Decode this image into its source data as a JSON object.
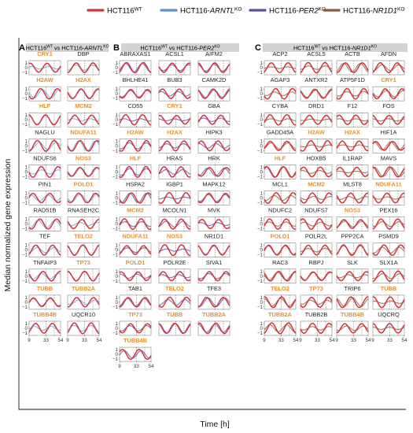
{
  "legend": [
    {
      "base": "HCT116",
      "sup": "WT",
      "italic": "",
      "color": "#d5333c"
    },
    {
      "base": "HCT116-",
      "italic": "ARNTL",
      "sup": "KO",
      "color": "#5b8fc8"
    },
    {
      "base": "HCT116-",
      "italic": "PER2",
      "sup": "KO",
      "color": "#5a4f9c"
    },
    {
      "base": "HCT116-",
      "italic": "NR1D1",
      "sup": "KO",
      "color": "#8a5a3c"
    }
  ],
  "axes": {
    "ylabel": "Median normalized gene expression",
    "xlabel": "Time [h]",
    "x_ticks": [
      9,
      33,
      54
    ],
    "y_ticks": [
      1,
      0,
      -1
    ]
  },
  "chart_data": [
    {
      "type": "line",
      "panel": "A",
      "header": {
        "base": "HCT116",
        "sup1": "WT",
        "mid": " vs HCT116-",
        "italic": "ARNTL",
        "sup2": "KO"
      },
      "xlabel": "Time [h]",
      "ylabel": "Median normalized gene expression",
      "x_range": [
        9,
        54
      ],
      "y_range": [
        -1.5,
        1.5
      ],
      "x_ticks": [
        9,
        33,
        54
      ],
      "y_ticks": [
        -1,
        0,
        1
      ],
      "series": [
        "HCT116WT",
        "HCT116-ARNTLKO"
      ],
      "genes": [
        {
          "name": "CRY1",
          "highlight": true
        },
        {
          "name": "DBP",
          "highlight": false
        },
        {
          "name": "H2AW",
          "highlight": true
        },
        {
          "name": "H2AX",
          "highlight": true
        },
        {
          "name": "HLF",
          "highlight": true
        },
        {
          "name": "MCM2",
          "highlight": true
        },
        {
          "name": "NAGLU",
          "highlight": false
        },
        {
          "name": "NDUFA11",
          "highlight": true
        },
        {
          "name": "NDUFS6",
          "highlight": false
        },
        {
          "name": "NOS3",
          "highlight": true
        },
        {
          "name": "PIN1",
          "highlight": false
        },
        {
          "name": "POLD1",
          "highlight": true
        },
        {
          "name": "RAD51B",
          "highlight": false
        },
        {
          "name": "RNASEH2C",
          "highlight": false
        },
        {
          "name": "TEF",
          "highlight": false
        },
        {
          "name": "TELO2",
          "highlight": true
        },
        {
          "name": "TNFAIP3",
          "highlight": false
        },
        {
          "name": "TP73",
          "highlight": true
        },
        {
          "name": "TUBB",
          "highlight": true
        },
        {
          "name": "TUBB2A",
          "highlight": true
        },
        {
          "name": "TUBB4B",
          "highlight": true
        },
        {
          "name": "UQCR10",
          "highlight": false
        }
      ]
    },
    {
      "type": "line",
      "panel": "B",
      "header": {
        "base": "HCT116",
        "sup1": "WT",
        "mid": " vs HCT116-",
        "italic": "PER2",
        "sup2": "KO"
      },
      "xlabel": "Time [h]",
      "ylabel": "Median normalized gene expression",
      "x_range": [
        9,
        54
      ],
      "y_range": [
        -1.5,
        1.5
      ],
      "x_ticks": [
        9,
        33,
        54
      ],
      "y_ticks": [
        -1,
        0,
        1
      ],
      "series": [
        "HCT116WT",
        "HCT116-PER2KO"
      ],
      "genes": [
        {
          "name": "ABRAXAS1",
          "highlight": false
        },
        {
          "name": "ACSL1",
          "highlight": false
        },
        {
          "name": "AIFM2",
          "highlight": false
        },
        {
          "name": "BHLHE41",
          "highlight": false
        },
        {
          "name": "BUB3",
          "highlight": false
        },
        {
          "name": "CAMK2D",
          "highlight": false
        },
        {
          "name": "CD55",
          "highlight": false
        },
        {
          "name": "CRY1",
          "highlight": true
        },
        {
          "name": "GBA",
          "highlight": false
        },
        {
          "name": "H2AW",
          "highlight": true
        },
        {
          "name": "H2AX",
          "highlight": true
        },
        {
          "name": "HIPK3",
          "highlight": false
        },
        {
          "name": "HLF",
          "highlight": true
        },
        {
          "name": "HRAS",
          "highlight": false
        },
        {
          "name": "HRK",
          "highlight": false
        },
        {
          "name": "HSPA2",
          "highlight": false
        },
        {
          "name": "IGBP1",
          "highlight": false
        },
        {
          "name": "MAPK12",
          "highlight": false
        },
        {
          "name": "MCM2",
          "highlight": true
        },
        {
          "name": "MCOLN1",
          "highlight": false
        },
        {
          "name": "MVK",
          "highlight": false
        },
        {
          "name": "NDUFA11",
          "highlight": true
        },
        {
          "name": "NOS3",
          "highlight": true
        },
        {
          "name": "NR1D1",
          "highlight": false
        },
        {
          "name": "POLD1",
          "highlight": true
        },
        {
          "name": "POLR2E",
          "highlight": false
        },
        {
          "name": "SIVA1",
          "highlight": false
        },
        {
          "name": "TAB1",
          "highlight": false
        },
        {
          "name": "TELO2",
          "highlight": true
        },
        {
          "name": "TFE3",
          "highlight": false
        },
        {
          "name": "TP73",
          "highlight": true
        },
        {
          "name": "TUBB",
          "highlight": true
        },
        {
          "name": "TUBB2A",
          "highlight": true
        },
        {
          "name": "TUBB4B",
          "highlight": true
        }
      ]
    },
    {
      "type": "line",
      "panel": "C",
      "header": {
        "base": "HCT116",
        "sup1": "WT",
        "mid": " vs HCT116-",
        "italic": "NR1D1",
        "sup2": "KO"
      },
      "xlabel": "Time [h]",
      "ylabel": "Median normalized gene expression",
      "x_range": [
        9,
        54
      ],
      "y_range": [
        -1.5,
        1.5
      ],
      "x_ticks": [
        9,
        33,
        54
      ],
      "y_ticks": [
        -1,
        0,
        1
      ],
      "series": [
        "HCT116WT",
        "HCT116-NR1D1KO"
      ],
      "genes": [
        {
          "name": "ACP2",
          "highlight": false
        },
        {
          "name": "ACSL5",
          "highlight": false
        },
        {
          "name": "ACTB",
          "highlight": false
        },
        {
          "name": "AFDN",
          "highlight": false
        },
        {
          "name": "AGAP3",
          "highlight": false
        },
        {
          "name": "ANTXR2",
          "highlight": false
        },
        {
          "name": "ATP5F1D",
          "highlight": false
        },
        {
          "name": "CRY1",
          "highlight": true
        },
        {
          "name": "CYBA",
          "highlight": false
        },
        {
          "name": "DRD1",
          "highlight": false
        },
        {
          "name": "F12",
          "highlight": false
        },
        {
          "name": "FOS",
          "highlight": false
        },
        {
          "name": "GADD45A",
          "highlight": false
        },
        {
          "name": "H2AW",
          "highlight": true
        },
        {
          "name": "H2AX",
          "highlight": true
        },
        {
          "name": "HIF1A",
          "highlight": false
        },
        {
          "name": "HLF",
          "highlight": true
        },
        {
          "name": "HOXB5",
          "highlight": false
        },
        {
          "name": "IL1RAP",
          "highlight": false
        },
        {
          "name": "MAVS",
          "highlight": false
        },
        {
          "name": "MCL1",
          "highlight": false
        },
        {
          "name": "MCM2",
          "highlight": true
        },
        {
          "name": "MLST8",
          "highlight": false
        },
        {
          "name": "NDUFA11",
          "highlight": true
        },
        {
          "name": "NDUFC2",
          "highlight": false
        },
        {
          "name": "NDUFS7",
          "highlight": false
        },
        {
          "name": "NOS3",
          "highlight": true
        },
        {
          "name": "PEX16",
          "highlight": false
        },
        {
          "name": "POLD1",
          "highlight": true
        },
        {
          "name": "POLR2L",
          "highlight": false
        },
        {
          "name": "PPP2CA",
          "highlight": false
        },
        {
          "name": "PSMD9",
          "highlight": false
        },
        {
          "name": "RAC3",
          "highlight": false
        },
        {
          "name": "RBPJ",
          "highlight": false
        },
        {
          "name": "SLK",
          "highlight": false
        },
        {
          "name": "SLX1A",
          "highlight": false
        },
        {
          "name": "TELO2",
          "highlight": true
        },
        {
          "name": "TP73",
          "highlight": true
        },
        {
          "name": "TRIP6",
          "highlight": false
        },
        {
          "name": "TUBB",
          "highlight": true
        },
        {
          "name": "TUBB2A",
          "highlight": true
        },
        {
          "name": "TUBB2B",
          "highlight": false
        },
        {
          "name": "TUBB4B",
          "highlight": true
        },
        {
          "name": "UQCRQ",
          "highlight": false
        }
      ]
    }
  ]
}
